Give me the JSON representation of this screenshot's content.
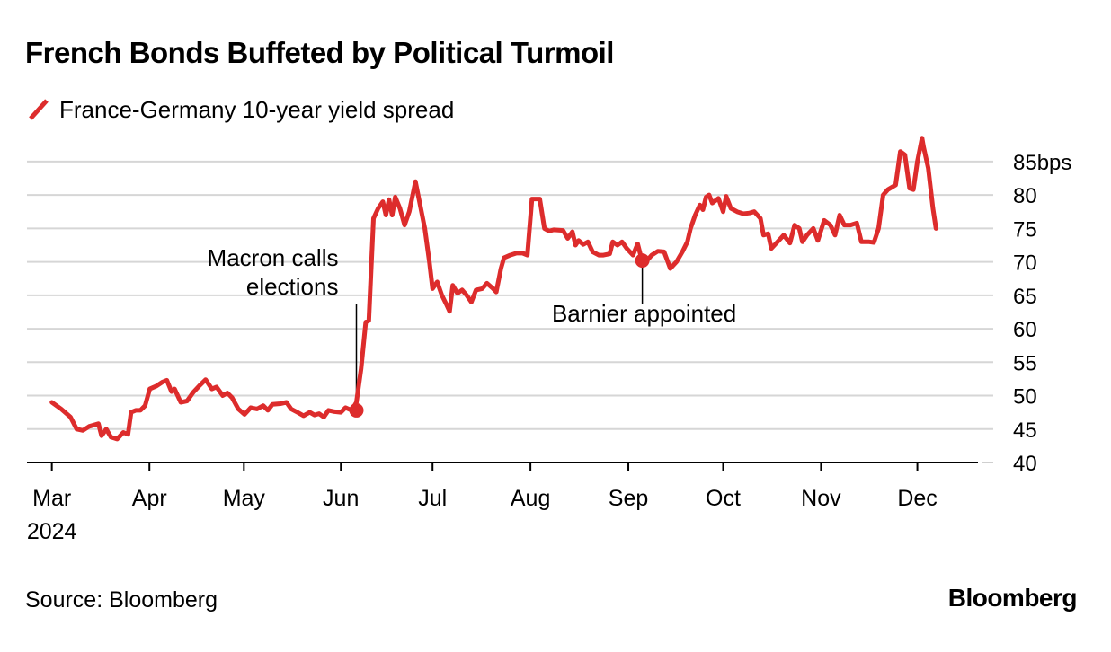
{
  "chart_data": {
    "type": "line",
    "title": "French Bonds Buffeted by Political Turmoil",
    "series": [
      {
        "name": "France-Germany 10-year yield spread",
        "color": "#dd2c2c",
        "points": [
          [
            0.0,
            49
          ],
          [
            0.3,
            48
          ],
          [
            0.6,
            46.8
          ],
          [
            0.8,
            45
          ],
          [
            1.0,
            44.8
          ],
          [
            1.2,
            45.4
          ],
          [
            1.5,
            45.8
          ],
          [
            1.6,
            44
          ],
          [
            1.75,
            45
          ],
          [
            1.9,
            43.8
          ],
          [
            2.1,
            43.5
          ],
          [
            2.3,
            44.5
          ],
          [
            2.45,
            44.2
          ],
          [
            2.55,
            47.5
          ],
          [
            2.7,
            47.8
          ],
          [
            2.85,
            47.8
          ],
          [
            3.0,
            48.5
          ],
          [
            3.15,
            51
          ],
          [
            3.35,
            51.4
          ],
          [
            3.55,
            52
          ],
          [
            3.7,
            52.3
          ],
          [
            3.85,
            50.6
          ],
          [
            3.95,
            51
          ],
          [
            4.15,
            49
          ],
          [
            4.35,
            49.2
          ],
          [
            4.55,
            50.5
          ],
          [
            4.75,
            51.5
          ],
          [
            4.95,
            52.4
          ],
          [
            5.15,
            51
          ],
          [
            5.3,
            51.3
          ],
          [
            5.5,
            50
          ],
          [
            5.65,
            50.4
          ],
          [
            5.8,
            49.7
          ],
          [
            6.0,
            48
          ],
          [
            6.2,
            47.2
          ],
          [
            6.4,
            48.2
          ],
          [
            6.6,
            48
          ],
          [
            6.8,
            48.5
          ],
          [
            6.95,
            47.8
          ],
          [
            7.1,
            48.7
          ],
          [
            7.35,
            48.8
          ],
          [
            7.55,
            49
          ],
          [
            7.7,
            48
          ],
          [
            7.9,
            47.5
          ],
          [
            8.1,
            47
          ],
          [
            8.3,
            47.5
          ],
          [
            8.45,
            47.1
          ],
          [
            8.6,
            47.3
          ],
          [
            8.75,
            46.8
          ],
          [
            8.9,
            47.8
          ],
          [
            9.1,
            47.6
          ],
          [
            9.3,
            47.5
          ],
          [
            9.45,
            48.2
          ],
          [
            9.65,
            47.8
          ],
          [
            9.8,
            49
          ],
          [
            9.95,
            54
          ],
          [
            10.1,
            61
          ],
          [
            10.2,
            61.2
          ],
          [
            10.35,
            76.5
          ],
          [
            10.5,
            78
          ],
          [
            10.65,
            79
          ],
          [
            10.75,
            77
          ],
          [
            10.85,
            79.3
          ],
          [
            10.95,
            77
          ],
          [
            11.05,
            79.7
          ],
          [
            11.2,
            78
          ],
          [
            11.35,
            75.5
          ],
          [
            11.5,
            77.5
          ],
          [
            11.7,
            82
          ],
          [
            11.85,
            78.5
          ],
          [
            12.0,
            75
          ],
          [
            12.15,
            70
          ],
          [
            12.25,
            66
          ],
          [
            12.4,
            67
          ],
          [
            12.55,
            65
          ],
          [
            12.7,
            63.6
          ],
          [
            12.8,
            62.6
          ],
          [
            12.9,
            66.5
          ],
          [
            13.05,
            65.3
          ],
          [
            13.2,
            65.8
          ],
          [
            13.35,
            65
          ],
          [
            13.5,
            64
          ],
          [
            13.65,
            65.8
          ],
          [
            13.85,
            66
          ],
          [
            14.0,
            66.8
          ],
          [
            14.2,
            66
          ],
          [
            14.3,
            65.5
          ],
          [
            14.45,
            69
          ],
          [
            14.55,
            70.6
          ],
          [
            14.75,
            71
          ],
          [
            14.95,
            71.3
          ],
          [
            15.15,
            71.3
          ],
          [
            15.3,
            71
          ],
          [
            15.45,
            79.4
          ],
          [
            15.7,
            79.4
          ],
          [
            15.85,
            75
          ],
          [
            16.0,
            74.6
          ],
          [
            16.15,
            74.8
          ],
          [
            16.45,
            74.7
          ],
          [
            16.6,
            73.5
          ],
          [
            16.75,
            74.5
          ],
          [
            16.85,
            72.5
          ],
          [
            16.95,
            73.2
          ],
          [
            17.1,
            72.6
          ],
          [
            17.25,
            73
          ],
          [
            17.4,
            71.5
          ],
          [
            17.6,
            71
          ],
          [
            17.75,
            71
          ],
          [
            17.95,
            71.2
          ],
          [
            18.05,
            73
          ],
          [
            18.2,
            72.5
          ],
          [
            18.35,
            73
          ],
          [
            18.5,
            72
          ],
          [
            18.7,
            71
          ],
          [
            18.85,
            72.7
          ],
          [
            19.0,
            70
          ],
          [
            19.15,
            70.2
          ],
          [
            19.3,
            71
          ],
          [
            19.5,
            71.6
          ],
          [
            19.7,
            71.5
          ],
          [
            19.9,
            69
          ],
          [
            20.1,
            70
          ],
          [
            20.3,
            71.6
          ],
          [
            20.45,
            73
          ],
          [
            20.55,
            75
          ],
          [
            20.7,
            77
          ],
          [
            20.85,
            78.5
          ],
          [
            20.95,
            77.8
          ],
          [
            21.05,
            79.7
          ],
          [
            21.15,
            80
          ],
          [
            21.25,
            78.8
          ],
          [
            21.45,
            79.5
          ],
          [
            21.6,
            77.5
          ],
          [
            21.7,
            79.8
          ],
          [
            21.85,
            78
          ],
          [
            22.05,
            77.5
          ],
          [
            22.25,
            77.2
          ],
          [
            22.45,
            77.3
          ],
          [
            22.6,
            77.5
          ],
          [
            22.8,
            76.5
          ],
          [
            22.9,
            74
          ],
          [
            23.05,
            74.2
          ],
          [
            23.15,
            72
          ],
          [
            23.35,
            73
          ],
          [
            23.55,
            74
          ],
          [
            23.75,
            72.8
          ],
          [
            23.9,
            75.5
          ],
          [
            24.05,
            75
          ],
          [
            24.15,
            73
          ],
          [
            24.3,
            74
          ],
          [
            24.5,
            75
          ],
          [
            24.65,
            73.2
          ],
          [
            24.85,
            76.2
          ],
          [
            25.05,
            75.5
          ],
          [
            25.2,
            74
          ],
          [
            25.35,
            77
          ],
          [
            25.5,
            75.5
          ],
          [
            25.7,
            75.5
          ],
          [
            25.9,
            75.8
          ],
          [
            26.05,
            73
          ],
          [
            26.3,
            73
          ],
          [
            26.45,
            72.9
          ],
          [
            26.6,
            75
          ],
          [
            26.75,
            80
          ],
          [
            26.9,
            80.8
          ],
          [
            27.15,
            81.5
          ],
          [
            27.3,
            86.5
          ],
          [
            27.45,
            86
          ],
          [
            27.6,
            81
          ],
          [
            27.72,
            80.8
          ],
          [
            27.85,
            85
          ],
          [
            28.0,
            88.5
          ],
          [
            28.05,
            87.2
          ],
          [
            28.2,
            84
          ],
          [
            28.35,
            78
          ],
          [
            28.45,
            75
          ]
        ]
      }
    ],
    "x_axis": {
      "range": [
        -0.8,
        29.8
      ],
      "ticks": [
        {
          "value": 0.0,
          "label": "Mar"
        },
        {
          "value": 3.14,
          "label": "Apr"
        },
        {
          "value": 6.18,
          "label": "May"
        },
        {
          "value": 9.3,
          "label": "Jun"
        },
        {
          "value": 12.25,
          "label": "Jul"
        },
        {
          "value": 15.4,
          "label": "Aug"
        },
        {
          "value": 18.55,
          "label": "Sep"
        },
        {
          "value": 21.6,
          "label": "Oct"
        },
        {
          "value": 24.75,
          "label": "Nov"
        },
        {
          "value": 27.85,
          "label": "Dec"
        }
      ],
      "year_label": "2024"
    },
    "y_axis": {
      "range": [
        40,
        87
      ],
      "ticks": [
        40,
        45,
        50,
        55,
        60,
        65,
        70,
        75,
        80,
        85
      ],
      "top_tick_label": "85bps",
      "grid": true
    },
    "annotations": [
      {
        "x": 9.8,
        "y": 47.8,
        "label_lines": [
          "Macron calls",
          "elections"
        ],
        "placement": "above-left"
      },
      {
        "x": 19.0,
        "y": 70.2,
        "label_lines": [
          "Barnier appointed"
        ],
        "placement": "below"
      }
    ]
  },
  "legend": {
    "label": "France-Germany 10-year yield spread"
  },
  "footer": {
    "source": "Source: Bloomberg",
    "brand": "Bloomberg"
  }
}
